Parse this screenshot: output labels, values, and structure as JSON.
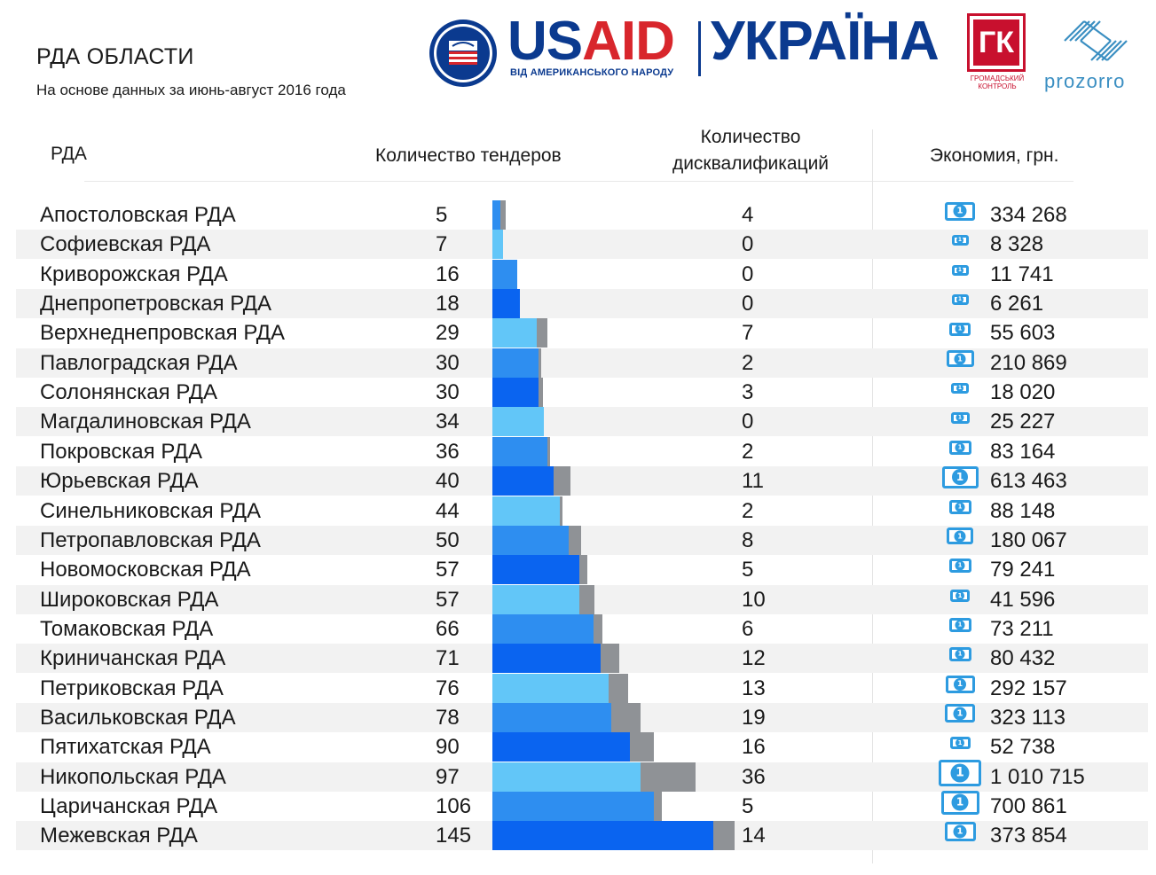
{
  "header": {
    "title": "РДА ОБЛАСТИ",
    "subtitle": "На основе данных за июнь-август 2016 года"
  },
  "logos": {
    "usaid_word_blue": "US",
    "usaid_word_red": "AID",
    "usaid_tagline": "ВІД АМЕРИКАНСЬКОГО НАРОДУ",
    "ukraine_word": "УКРАЇНА",
    "gk_letters": "ГК",
    "gk_caption": "ГРОМАДСЬКИЙ КОНТРОЛЬ",
    "prozorro_word": "prozorro"
  },
  "columns": {
    "rda": "РДА",
    "tenders": "Количество тендеров",
    "disqualifications_line1": "Количество",
    "disqualifications_line2": "дисквалификаций",
    "economy": "Экономия, грн."
  },
  "colors": {
    "blue_dark": "#0a64f0",
    "blue_mid": "#2e8ef0",
    "blue_light": "#62c6f8",
    "grey": "#8f9296",
    "icon_blue": "#2d9be0"
  },
  "chart_data": {
    "type": "bar",
    "orientation": "horizontal",
    "stacked": "overlay",
    "categories": [
      "Апостоловская РДА",
      "Софиевская РДА",
      "Криворожская РДА",
      "Днепропетровская РДА",
      "Верхнеднепровская РДА",
      "Павлоградская РДА",
      "Солонянская РДА",
      "Магдалиновская РДА",
      "Покровская РДА",
      "Юрьевская РДА",
      "Синельниковская РДА",
      "Петропавловская РДА",
      "Новомосковская РДА",
      "Широковская РДА",
      "Томаковская РДА",
      "Криничанская РДА",
      "Петриковская РДА",
      "Васильковская РДА",
      "Пятихатская РДА",
      "Никопольская РДА",
      "Царичанская РДА",
      "Межевская РДА"
    ],
    "series": [
      {
        "name": "Количество тендеров",
        "values": [
          5,
          7,
          16,
          18,
          29,
          30,
          30,
          34,
          36,
          40,
          44,
          50,
          57,
          57,
          66,
          71,
          76,
          78,
          90,
          97,
          106,
          145
        ]
      },
      {
        "name": "Количество дисквалификаций",
        "values": [
          4,
          0,
          0,
          0,
          7,
          2,
          3,
          0,
          2,
          11,
          2,
          8,
          5,
          10,
          6,
          12,
          13,
          19,
          16,
          36,
          5,
          14
        ]
      }
    ],
    "economy_labels": [
      "334 268",
      "8 328",
      "11 741",
      "6 261",
      "55 603",
      "210 869",
      "18 020",
      "25 227",
      "83 164",
      "613 463",
      "88 148",
      "180 067",
      "79 241",
      "41 596",
      "73 211",
      "80 432",
      "292 157",
      "323 113",
      "52 738",
      "1 010 715",
      "700 861",
      "373 854"
    ],
    "economy_values": [
      334268,
      8328,
      11741,
      6261,
      55603,
      210869,
      18020,
      25227,
      83164,
      613463,
      88148,
      180067,
      79241,
      41596,
      73211,
      80432,
      292157,
      323113,
      52738,
      1010715,
      700861,
      373854
    ],
    "tenders_labels": [
      "5",
      "7",
      "16",
      "18",
      "29",
      "30",
      "30",
      "34",
      "36",
      "40",
      "44",
      "50",
      "57",
      "57",
      "66",
      "71",
      "76",
      "78",
      "90",
      "97",
      "106",
      "145"
    ],
    "disqualifications_labels": [
      "4",
      "0",
      "0",
      "0",
      "7",
      "2",
      "3",
      "0",
      "2",
      "11",
      "2",
      "8",
      "5",
      "10",
      "6",
      "12",
      "13",
      "19",
      "16",
      "36",
      "5",
      "14"
    ],
    "row_colors": [
      "blue_mid",
      "blue_light",
      "blue_mid",
      "blue_dark",
      "blue_light",
      "blue_mid",
      "blue_dark",
      "blue_light",
      "blue_mid",
      "blue_dark",
      "blue_light",
      "blue_mid",
      "blue_dark",
      "blue_light",
      "blue_mid",
      "blue_dark",
      "blue_light",
      "blue_mid",
      "blue_dark",
      "blue_light",
      "blue_mid",
      "blue_dark"
    ],
    "grid": false,
    "legend": "none"
  }
}
